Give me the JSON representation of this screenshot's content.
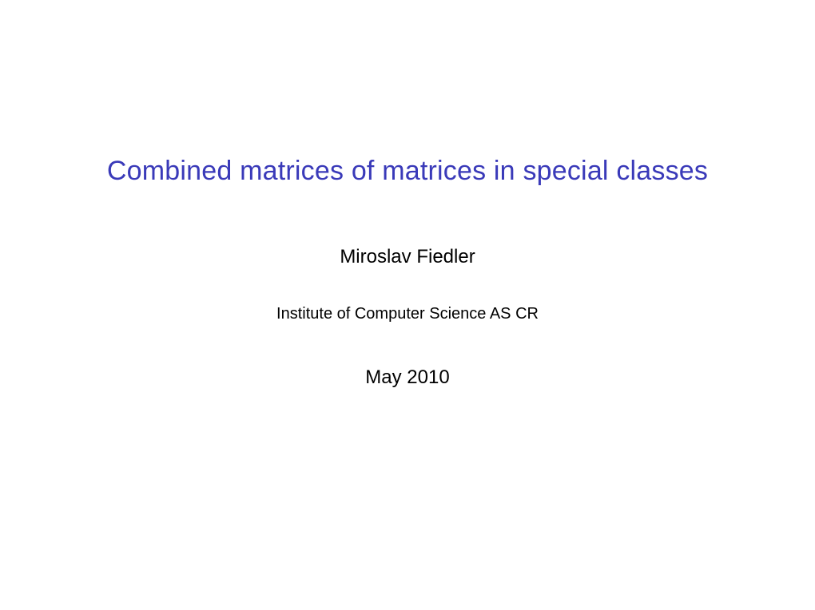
{
  "slide": {
    "title": "Combined matrices of matrices in special classes",
    "author": "Miroslav Fiedler",
    "institute": "Institute of Computer Science AS CR",
    "date": "May 2010"
  },
  "colors": {
    "title_color": "#3a3ab9",
    "text_color": "#000000",
    "background_color": "#ffffff"
  },
  "typography": {
    "title_fontsize": 34,
    "author_fontsize": 24,
    "institute_fontsize": 20,
    "date_fontsize": 24
  }
}
